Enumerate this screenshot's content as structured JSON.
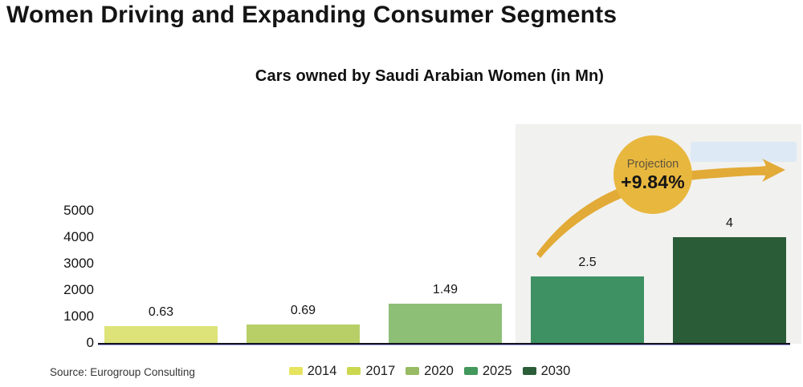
{
  "page": {
    "title": "Women Driving and Expanding Consumer Segments",
    "source": "Source: Eurogroup Consulting"
  },
  "chart_data": {
    "type": "bar",
    "title": "Cars owned by Saudi Arabian Women (in Mn)",
    "categories": [
      "2014",
      "2017",
      "2020",
      "2025",
      "2030"
    ],
    "values": [
      0.63,
      0.69,
      1.49,
      2.5,
      4
    ],
    "value_labels": [
      "0.63",
      "0.69",
      "1.49",
      "2.5",
      "4"
    ],
    "yticks": [
      0,
      1000,
      2000,
      3000,
      4000,
      5000
    ],
    "ylim": [
      0,
      5000
    ],
    "grid": false,
    "legend_position": "bottom",
    "bar_colors": [
      "#dde378",
      "#b8cf68",
      "#8dbf77",
      "#3e9163",
      "#2a5c38"
    ],
    "legend_colors": [
      "#e6e45f",
      "#ccd750",
      "#98ba63",
      "#43985c",
      "#2b5e38"
    ],
    "projection": {
      "label": "Projection",
      "value": "+9.84%",
      "applies_to": [
        "2025",
        "2030"
      ],
      "bubble_color": "#e8b73e",
      "arrow_color": "#e2aa36",
      "panel_color": "#f1f1ef",
      "highlight_color": "#dde9f4"
    }
  }
}
